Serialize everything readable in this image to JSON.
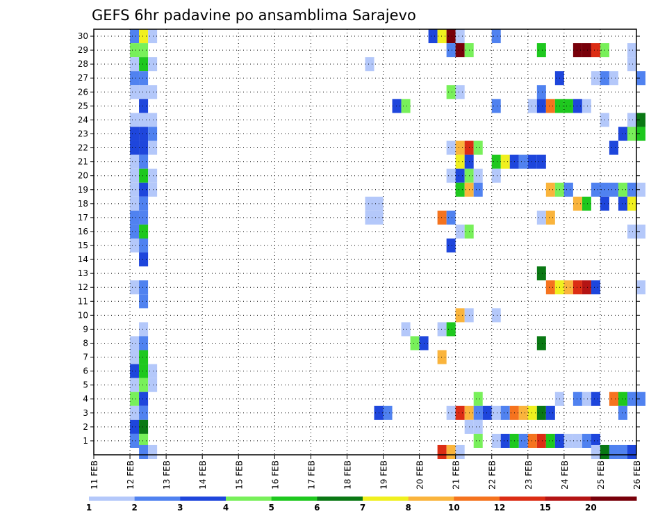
{
  "chart_data": {
    "type": "heatmap",
    "title": "GEFS 6hr padavine po ansamblima Sarajevo",
    "xlabel": "",
    "ylabel": "",
    "x_tick_labels": [
      "11 FEB",
      "12 FEB",
      "13 FEB",
      "14 FEB",
      "15 FEB",
      "16 FEB",
      "17 FEB",
      "18 FEB",
      "19 FEB",
      "20 FEB",
      "21 FEB",
      "22 FEB",
      "23 FEB",
      "24 FEB",
      "25 FEB",
      "26 FEB"
    ],
    "y_tick_labels": [
      "1",
      "2",
      "3",
      "4",
      "5",
      "6",
      "7",
      "8",
      "9",
      "10",
      "11",
      "12",
      "13",
      "14",
      "15",
      "16",
      "17",
      "18",
      "19",
      "20",
      "21",
      "22",
      "23",
      "24",
      "25",
      "26",
      "27",
      "28",
      "29",
      "30"
    ],
    "xlim": [
      0,
      15
    ],
    "ylim": [
      0,
      30.5
    ],
    "grid": "dotted",
    "colorbar": {
      "labels": [
        "1",
        "2",
        "3",
        "4",
        "5",
        "6",
        "7",
        "8",
        "10",
        "12",
        "15",
        "20"
      ],
      "colors": [
        "#b4c8fa",
        "#5082f0",
        "#1e46dc",
        "#78f05a",
        "#1ec81e",
        "#0a7814",
        "#f0f01e",
        "#fab43c",
        "#f5731e",
        "#dc2d14",
        "#b41414",
        "#78000a"
      ]
    },
    "cells": [
      [
        1.0,
        30,
        2
      ],
      [
        1.25,
        30,
        7
      ],
      [
        1.5,
        30,
        1
      ],
      [
        9.25,
        30,
        3
      ],
      [
        9.5,
        30,
        7
      ],
      [
        9.75,
        30,
        12
      ],
      [
        10.0,
        30,
        1
      ],
      [
        11.0,
        30,
        2
      ],
      [
        1.0,
        29,
        4
      ],
      [
        1.25,
        29,
        4
      ],
      [
        9.75,
        29,
        2
      ],
      [
        10.0,
        29,
        12
      ],
      [
        10.25,
        29,
        4
      ],
      [
        12.25,
        29,
        5
      ],
      [
        13.25,
        29,
        12
      ],
      [
        13.5,
        29,
        12
      ],
      [
        13.75,
        29,
        10
      ],
      [
        14.0,
        29,
        4
      ],
      [
        14.75,
        29,
        1
      ],
      [
        1.0,
        28,
        1
      ],
      [
        1.25,
        28,
        5
      ],
      [
        1.5,
        28,
        1
      ],
      [
        7.5,
        28,
        1
      ],
      [
        14.75,
        28,
        1
      ],
      [
        1.0,
        27,
        2
      ],
      [
        1.25,
        27,
        2
      ],
      [
        12.75,
        27,
        3
      ],
      [
        13.75,
        27,
        1
      ],
      [
        14.0,
        27,
        2
      ],
      [
        14.25,
        27,
        1
      ],
      [
        15.0,
        27,
        2
      ],
      [
        1.0,
        26,
        1
      ],
      [
        1.25,
        26,
        1
      ],
      [
        1.5,
        26,
        1
      ],
      [
        9.75,
        26,
        4
      ],
      [
        10.0,
        26,
        1
      ],
      [
        12.25,
        26,
        2
      ],
      [
        1.25,
        25,
        3
      ],
      [
        8.25,
        25,
        3
      ],
      [
        8.5,
        25,
        4
      ],
      [
        11.0,
        25,
        2
      ],
      [
        12.0,
        25,
        1
      ],
      [
        12.25,
        25,
        3
      ],
      [
        12.5,
        25,
        9
      ],
      [
        12.75,
        25,
        5
      ],
      [
        13.0,
        25,
        5
      ],
      [
        13.25,
        25,
        3
      ],
      [
        13.5,
        25,
        1
      ],
      [
        1.0,
        24,
        1
      ],
      [
        1.25,
        24,
        1
      ],
      [
        1.5,
        24,
        1
      ],
      [
        14.0,
        24,
        1
      ],
      [
        14.75,
        24,
        1
      ],
      [
        15.0,
        24,
        6
      ],
      [
        1.0,
        23,
        3
      ],
      [
        1.25,
        23,
        3
      ],
      [
        1.5,
        23,
        2
      ],
      [
        14.5,
        23,
        3
      ],
      [
        14.75,
        23,
        4
      ],
      [
        15.0,
        23,
        5
      ],
      [
        1.0,
        22,
        3
      ],
      [
        1.25,
        22,
        3
      ],
      [
        1.5,
        22,
        1
      ],
      [
        9.75,
        22,
        1
      ],
      [
        10.0,
        22,
        8
      ],
      [
        10.25,
        22,
        10
      ],
      [
        10.5,
        22,
        4
      ],
      [
        14.25,
        22,
        3
      ],
      [
        1.0,
        21,
        1
      ],
      [
        1.25,
        21,
        2
      ],
      [
        10.0,
        21,
        7
      ],
      [
        10.25,
        21,
        3
      ],
      [
        11.0,
        21,
        5
      ],
      [
        11.25,
        21,
        7
      ],
      [
        11.5,
        21,
        3
      ],
      [
        11.75,
        21,
        2
      ],
      [
        12.0,
        21,
        3
      ],
      [
        12.25,
        21,
        3
      ],
      [
        1.0,
        20,
        1
      ],
      [
        1.25,
        20,
        5
      ],
      [
        1.5,
        20,
        1
      ],
      [
        9.75,
        20,
        1
      ],
      [
        10.0,
        20,
        3
      ],
      [
        10.25,
        20,
        4
      ],
      [
        10.5,
        20,
        1
      ],
      [
        11.0,
        20,
        1
      ],
      [
        1.0,
        19,
        1
      ],
      [
        1.25,
        19,
        3
      ],
      [
        1.5,
        19,
        1
      ],
      [
        10.0,
        19,
        5
      ],
      [
        10.25,
        19,
        8
      ],
      [
        10.5,
        19,
        2
      ],
      [
        12.5,
        19,
        8
      ],
      [
        12.75,
        19,
        4
      ],
      [
        13.0,
        19,
        2
      ],
      [
        13.75,
        19,
        2
      ],
      [
        14.0,
        19,
        2
      ],
      [
        14.25,
        19,
        2
      ],
      [
        14.5,
        19,
        4
      ],
      [
        14.75,
        19,
        2
      ],
      [
        15.0,
        19,
        1
      ],
      [
        1.0,
        18,
        1
      ],
      [
        1.25,
        18,
        2
      ],
      [
        7.5,
        18,
        1
      ],
      [
        7.75,
        18,
        1
      ],
      [
        13.25,
        18,
        8
      ],
      [
        13.5,
        18,
        5
      ],
      [
        14.0,
        18,
        3
      ],
      [
        14.5,
        18,
        3
      ],
      [
        14.75,
        18,
        7
      ],
      [
        1.0,
        17,
        2
      ],
      [
        1.25,
        17,
        2
      ],
      [
        7.5,
        17,
        1
      ],
      [
        7.75,
        17,
        1
      ],
      [
        9.5,
        17,
        9
      ],
      [
        9.75,
        17,
        2
      ],
      [
        12.25,
        17,
        1
      ],
      [
        12.5,
        17,
        8
      ],
      [
        1.0,
        16,
        2
      ],
      [
        1.25,
        16,
        5
      ],
      [
        10.0,
        16,
        1
      ],
      [
        10.25,
        16,
        4
      ],
      [
        14.75,
        16,
        1
      ],
      [
        15.0,
        16,
        1
      ],
      [
        1.0,
        15,
        1
      ],
      [
        1.25,
        15,
        2
      ],
      [
        9.75,
        15,
        3
      ],
      [
        1.25,
        14,
        3
      ],
      [
        12.25,
        13,
        6
      ],
      [
        1.0,
        12,
        1
      ],
      [
        1.25,
        12,
        2
      ],
      [
        12.5,
        12,
        9
      ],
      [
        12.75,
        12,
        7
      ],
      [
        13.0,
        12,
        8
      ],
      [
        13.25,
        12,
        10
      ],
      [
        13.5,
        12,
        11
      ],
      [
        13.75,
        12,
        3
      ],
      [
        15.0,
        12,
        1
      ],
      [
        1.25,
        11,
        2
      ],
      [
        10.0,
        10,
        8
      ],
      [
        10.25,
        10,
        1
      ],
      [
        11.0,
        10,
        1
      ],
      [
        1.25,
        9,
        1
      ],
      [
        8.5,
        9,
        1
      ],
      [
        9.5,
        9,
        1
      ],
      [
        9.75,
        9,
        5
      ],
      [
        1.0,
        8,
        1
      ],
      [
        1.25,
        8,
        2
      ],
      [
        8.75,
        8,
        4
      ],
      [
        9.0,
        8,
        3
      ],
      [
        12.25,
        8,
        6
      ],
      [
        1.0,
        7,
        1
      ],
      [
        1.25,
        7,
        5
      ],
      [
        9.5,
        7,
        8
      ],
      [
        1.0,
        6,
        3
      ],
      [
        1.25,
        6,
        5
      ],
      [
        1.5,
        6,
        1
      ],
      [
        1.0,
        5,
        1
      ],
      [
        1.25,
        5,
        4
      ],
      [
        1.5,
        5,
        1
      ],
      [
        1.0,
        4,
        4
      ],
      [
        1.25,
        4,
        3
      ],
      [
        10.5,
        4,
        4
      ],
      [
        12.75,
        4,
        1
      ],
      [
        13.25,
        4,
        2
      ],
      [
        13.5,
        4,
        1
      ],
      [
        13.75,
        4,
        3
      ],
      [
        14.25,
        4,
        9
      ],
      [
        14.5,
        4,
        5
      ],
      [
        14.75,
        4,
        2
      ],
      [
        15.0,
        4,
        2
      ],
      [
        1.0,
        3,
        1
      ],
      [
        1.25,
        3,
        2
      ],
      [
        7.75,
        3,
        3
      ],
      [
        8.0,
        3,
        2
      ],
      [
        9.75,
        3,
        1
      ],
      [
        10.0,
        3,
        10
      ],
      [
        10.25,
        3,
        8
      ],
      [
        10.5,
        3,
        2
      ],
      [
        10.75,
        3,
        3
      ],
      [
        11.0,
        3,
        1
      ],
      [
        11.25,
        3,
        2
      ],
      [
        11.5,
        3,
        9
      ],
      [
        11.75,
        3,
        8
      ],
      [
        12.0,
        3,
        7
      ],
      [
        12.25,
        3,
        6
      ],
      [
        12.5,
        3,
        3
      ],
      [
        14.5,
        3,
        2
      ],
      [
        1.0,
        2,
        3
      ],
      [
        1.25,
        2,
        6
      ],
      [
        10.25,
        2,
        1
      ],
      [
        10.5,
        2,
        1
      ],
      [
        1.0,
        1,
        2
      ],
      [
        1.25,
        1,
        4
      ],
      [
        10.5,
        1,
        4
      ],
      [
        11.0,
        1,
        1
      ],
      [
        11.25,
        1,
        3
      ],
      [
        11.5,
        1,
        5
      ],
      [
        11.75,
        1,
        2
      ],
      [
        12.0,
        1,
        9
      ],
      [
        12.25,
        1,
        10
      ],
      [
        12.5,
        1,
        5
      ],
      [
        12.75,
        1,
        3
      ],
      [
        13.0,
        1,
        1
      ],
      [
        13.25,
        1,
        1
      ],
      [
        13.5,
        1,
        2
      ],
      [
        13.75,
        1,
        3
      ],
      [
        1.25,
        0.2,
        2
      ],
      [
        1.5,
        0.2,
        1
      ],
      [
        9.5,
        0.2,
        10
      ],
      [
        9.75,
        0.2,
        8
      ],
      [
        10.0,
        0.2,
        1
      ],
      [
        13.75,
        0.2,
        1
      ],
      [
        14.0,
        0.2,
        6
      ],
      [
        14.25,
        0.2,
        2
      ],
      [
        14.5,
        0.2,
        2
      ],
      [
        14.75,
        0.2,
        3
      ]
    ]
  }
}
